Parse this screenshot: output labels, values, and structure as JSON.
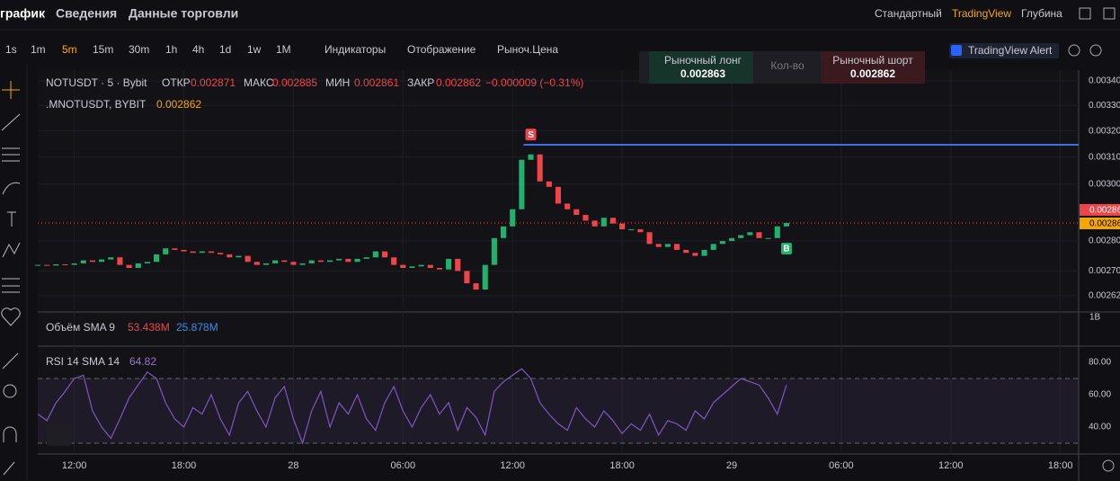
{
  "tabs": [
    "график",
    "Сведения",
    "Данные торговли"
  ],
  "view_modes": [
    "Стандартный",
    "TradingView",
    "Глубина"
  ],
  "intervals": [
    "1s",
    "1m",
    "5m",
    "15m",
    "30m",
    "1h",
    "4h",
    "1d",
    "1w",
    "1M"
  ],
  "toolbar_menus": [
    "Индикаторы",
    "Отображение",
    "Рыноч.Цена"
  ],
  "alert": "TradingView Alert",
  "order_panel": {
    "long_label": "Рыночный лонг",
    "long_price": "0.002863",
    "qty": "Кол-во",
    "short_label": "Рыночный шорт",
    "short_price": "0.002862"
  },
  "chart_data": {
    "type": "candlestick",
    "symbol": "NOTUSDT · 5 · Bybit",
    "ohlc": [
      {
        "label": "ОТКР",
        "value": "0.002871"
      },
      {
        "label": "МАКС",
        "value": "0.002885"
      },
      {
        "label": "МИН",
        "value": "0.002861"
      },
      {
        "label": "ЗАКР",
        "value": "0.002862"
      }
    ],
    "change": "−0.000009 (−0.31%)",
    "mark_symbol": ".MNOTUSDT, BYBIT",
    "mark_price": "0.002862",
    "x": [
      10,
      10.5,
      11,
      11.5,
      12,
      12.5,
      13,
      13.5,
      14,
      14.5,
      15,
      15.5,
      16,
      16.5,
      17,
      17.5,
      18,
      18.5,
      19,
      19.5,
      20,
      20.5,
      21,
      21.5,
      22,
      22.5,
      23,
      23.5,
      24,
      24.5,
      25,
      25.5,
      26,
      26.5,
      27,
      27.5,
      28,
      28.5,
      29,
      29.5,
      30,
      30.5,
      31,
      31.5,
      32,
      32.5,
      33,
      33.5,
      34,
      34.5,
      35,
      35.5,
      36,
      36.5,
      37,
      37.5,
      38,
      38.5,
      39,
      39.5,
      40,
      40.5,
      41,
      41.5,
      42,
      42.5,
      43,
      43.5,
      44,
      44.5,
      45,
      45.5,
      46,
      46.5,
      47,
      47.5,
      48,
      48.5,
      49,
      49.5,
      50,
      50.5,
      51
    ],
    "values": [
      0.00272,
      0.002718,
      0.002722,
      0.00272,
      0.002725,
      0.002735,
      0.00273,
      0.002738,
      0.002745,
      0.00272,
      0.00271,
      0.002725,
      0.00273,
      0.002755,
      0.002775,
      0.00277,
      0.002765,
      0.00276,
      0.002765,
      0.00276,
      0.002755,
      0.002745,
      0.00275,
      0.00273,
      0.00272,
      0.002725,
      0.002735,
      0.00273,
      0.00272,
      0.002725,
      0.002735,
      0.00273,
      0.002735,
      0.00274,
      0.00273,
      0.00274,
      0.002745,
      0.002765,
      0.002745,
      0.00272,
      0.00271,
      0.002715,
      0.00272,
      0.00271,
      0.002705,
      0.00274,
      0.0027,
      0.00266,
      0.00264,
      0.00272,
      0.00281,
      0.00285,
      0.00291,
      0.00309,
      0.00311,
      0.00301,
      0.00299,
      0.00293,
      0.00291,
      0.00289,
      0.00287,
      0.00285,
      0.00288,
      0.00286,
      0.00284,
      0.00284,
      0.00283,
      0.00279,
      0.00278,
      0.00279,
      0.00277,
      0.00276,
      0.00275,
      0.00277,
      0.00279,
      0.0028,
      0.00281,
      0.00282,
      0.00283,
      0.00281,
      0.00281,
      0.00285,
      0.002862
    ],
    "up_color": "#20b26c",
    "down_color": "#ef454a",
    "log": true,
    "ylim": [
      0.002569,
      0.003445
    ],
    "yticks": [
      {
        "value": 0.0034,
        "label": "0.00340"
      },
      {
        "value": 0.0033,
        "label": "0.00330"
      },
      {
        "value": 0.0032,
        "label": "0.00320"
      },
      {
        "value": 0.0031,
        "label": "0.00310"
      },
      {
        "value": 0.003,
        "label": "0.00300"
      },
      {
        "value": 0.0028,
        "label": "0.00280"
      },
      {
        "value": 0.0027,
        "label": "0.00270"
      },
      {
        "value": 0.00262,
        "label": "0.00262"
      }
    ],
    "xlim": [
      10,
      67
    ],
    "xticks": [
      {
        "value": 12,
        "label": "12:00"
      },
      {
        "value": 18,
        "label": "18:00"
      },
      {
        "value": 24,
        "label": "28"
      },
      {
        "value": 30,
        "label": "06:00"
      },
      {
        "value": 36,
        "label": "12:00"
      },
      {
        "value": 42,
        "label": "18:00"
      },
      {
        "value": 48,
        "label": "29"
      },
      {
        "value": 54,
        "label": "06:00"
      },
      {
        "value": 60,
        "label": "12:00"
      },
      {
        "value": 66,
        "label": "18:00"
      }
    ],
    "grid": true,
    "last_price": 0.002862,
    "price_tags": [
      "0.00286",
      "0.00286"
    ],
    "horizontal_line": {
      "value": 0.003147,
      "from": 36.6,
      "color": "#3d6fe8"
    },
    "signals": [
      {
        "label": "S",
        "x": 37,
        "value": 0.00316
      },
      {
        "label": "B",
        "x": 51,
        "value": 0.0028
      }
    ],
    "volume": {
      "title": "Объём SMA 9",
      "value1": "53.438M",
      "value2": "25.878M",
      "tick": "1B"
    },
    "rsi": {
      "title": "RSI 14 SMA 14",
      "value": "64.82",
      "color": "#7e57c2",
      "ylim": [
        23.3,
        90
      ],
      "yticks": [
        {
          "value": 80,
          "label": "80.00"
        },
        {
          "value": 60,
          "label": "60.00"
        },
        {
          "value": 40,
          "label": "40.00"
        }
      ],
      "bands": [
        70,
        30
      ],
      "values": [
        48,
        44,
        55,
        62,
        70,
        72,
        50,
        40,
        33,
        45,
        58,
        66,
        74,
        70,
        55,
        45,
        40,
        52,
        48,
        60,
        45,
        35,
        55,
        62,
        50,
        40,
        58,
        65,
        45,
        30,
        50,
        62,
        40,
        55,
        48,
        60,
        45,
        38,
        55,
        65,
        50,
        40,
        52,
        60,
        48,
        55,
        38,
        52,
        46,
        35,
        62,
        68,
        72,
        76,
        70,
        55,
        48,
        42,
        38,
        52,
        45,
        40,
        50,
        44,
        36,
        42,
        38,
        48,
        35,
        44,
        42,
        38,
        50,
        45,
        55,
        60,
        65,
        70,
        68,
        66,
        58,
        48,
        66
      ]
    }
  }
}
